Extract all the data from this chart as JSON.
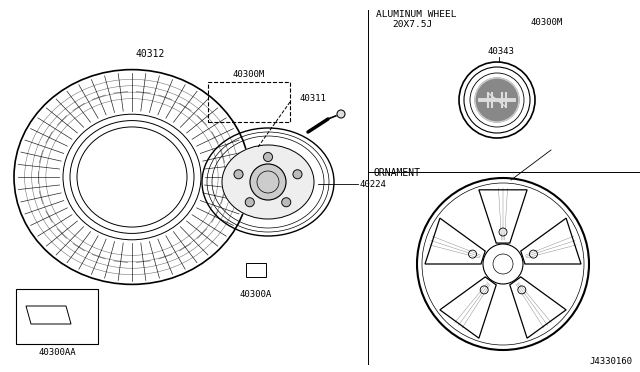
{
  "bg_color": "#ffffff",
  "line_color": "#000000",
  "labels": {
    "tire": "40312",
    "wheel_label": "40300M",
    "wheel_label2": "40300M",
    "valve": "40311",
    "hub": "40224",
    "lug_nut": "40300A",
    "balance_weight": "40300AA",
    "ornament_label": "40343",
    "aluminum_wheel_title": "ALUMINUM WHEEL",
    "aluminum_wheel_size": "20X7.5J",
    "ornament_title": "ORNAMENT",
    "diagram_id": "J4330160"
  }
}
